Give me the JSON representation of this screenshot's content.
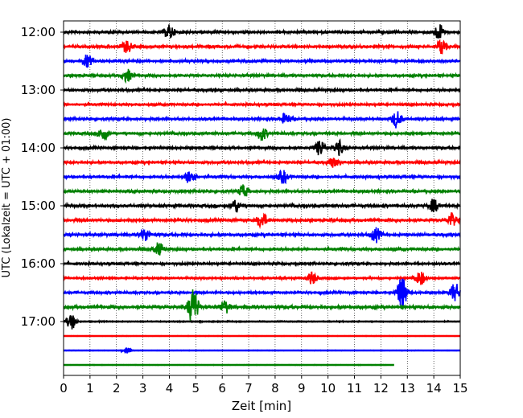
{
  "chart_data": {
    "type": "line",
    "title": "",
    "xlabel": "Zeit  [min]",
    "ylabel": "UTC (Lokalzeit = UTC + 01:00)",
    "xlim": [
      0,
      15
    ],
    "x_ticks": [
      0,
      1,
      2,
      3,
      4,
      5,
      6,
      7,
      8,
      9,
      10,
      11,
      12,
      13,
      14,
      15
    ],
    "x_tick_labels": [
      "0",
      "1",
      "2",
      "3",
      "4",
      "5",
      "6",
      "7",
      "8",
      "9",
      "10",
      "11",
      "12",
      "13",
      "14",
      "15"
    ],
    "y_tick_labels": [
      "12:00",
      "13:00",
      "14:00",
      "15:00",
      "16:00",
      "17:00"
    ],
    "trace_interval_minutes": 15,
    "first_trace_time": "12:00",
    "grid": "vertical dotted",
    "colors": [
      "#000000",
      "#ff0000",
      "#0000ff",
      "#008000"
    ],
    "traces": [
      {
        "time": "12:00",
        "color": "#000000",
        "end_min": 15,
        "amplitude": 0.45,
        "events": [
          {
            "at_min": 4.0,
            "amp": 0.9
          },
          {
            "at_min": 14.2,
            "amp": 1.0
          }
        ]
      },
      {
        "time": "12:15",
        "color": "#ff0000",
        "end_min": 15,
        "amplitude": 0.45,
        "events": [
          {
            "at_min": 2.4,
            "amp": 0.8
          },
          {
            "at_min": 14.3,
            "amp": 1.0
          }
        ]
      },
      {
        "time": "12:30",
        "color": "#0000ff",
        "end_min": 15,
        "amplitude": 0.45,
        "events": [
          {
            "at_min": 0.9,
            "amp": 0.8
          }
        ]
      },
      {
        "time": "12:45",
        "color": "#008000",
        "end_min": 15,
        "amplitude": 0.45,
        "events": [
          {
            "at_min": 2.4,
            "amp": 0.8
          }
        ]
      },
      {
        "time": "13:00",
        "color": "#000000",
        "end_min": 15,
        "amplitude": 0.45,
        "events": []
      },
      {
        "time": "13:15",
        "color": "#ff0000",
        "end_min": 15,
        "amplitude": 0.4,
        "events": []
      },
      {
        "time": "13:30",
        "color": "#0000ff",
        "end_min": 15,
        "amplitude": 0.45,
        "events": [
          {
            "at_min": 8.4,
            "amp": 0.7
          },
          {
            "at_min": 12.6,
            "amp": 1.1
          }
        ]
      },
      {
        "time": "13:45",
        "color": "#008000",
        "end_min": 15,
        "amplitude": 0.45,
        "events": [
          {
            "at_min": 1.5,
            "amp": 0.9
          },
          {
            "at_min": 7.5,
            "amp": 0.9
          }
        ]
      },
      {
        "time": "14:00",
        "color": "#000000",
        "end_min": 15,
        "amplitude": 0.45,
        "events": [
          {
            "at_min": 9.7,
            "amp": 1.0
          },
          {
            "at_min": 10.4,
            "amp": 0.9
          }
        ]
      },
      {
        "time": "14:15",
        "color": "#ff0000",
        "end_min": 15,
        "amplitude": 0.45,
        "events": [
          {
            "at_min": 10.2,
            "amp": 0.6
          }
        ]
      },
      {
        "time": "14:30",
        "color": "#0000ff",
        "end_min": 15,
        "amplitude": 0.45,
        "events": [
          {
            "at_min": 4.8,
            "amp": 1.1
          },
          {
            "at_min": 8.3,
            "amp": 0.8
          }
        ]
      },
      {
        "time": "14:45",
        "color": "#008000",
        "end_min": 15,
        "amplitude": 0.45,
        "events": [
          {
            "at_min": 6.8,
            "amp": 0.8
          }
        ]
      },
      {
        "time": "15:00",
        "color": "#000000",
        "end_min": 15,
        "amplitude": 0.5,
        "events": [
          {
            "at_min": 6.5,
            "amp": 0.8
          },
          {
            "at_min": 14.0,
            "amp": 0.8
          }
        ]
      },
      {
        "time": "15:15",
        "color": "#ff0000",
        "end_min": 15,
        "amplitude": 0.5,
        "events": [
          {
            "at_min": 7.5,
            "amp": 1.0
          },
          {
            "at_min": 14.7,
            "amp": 0.9
          }
        ]
      },
      {
        "time": "15:30",
        "color": "#0000ff",
        "end_min": 15,
        "amplitude": 0.5,
        "events": [
          {
            "at_min": 3.1,
            "amp": 0.8
          },
          {
            "at_min": 11.8,
            "amp": 0.9
          }
        ]
      },
      {
        "time": "15:45",
        "color": "#008000",
        "end_min": 15,
        "amplitude": 0.45,
        "events": [
          {
            "at_min": 3.6,
            "amp": 0.8
          }
        ]
      },
      {
        "time": "16:00",
        "color": "#000000",
        "end_min": 15,
        "amplitude": 0.4,
        "events": []
      },
      {
        "time": "16:15",
        "color": "#ff0000",
        "end_min": 15,
        "amplitude": 0.35,
        "events": [
          {
            "at_min": 9.4,
            "amp": 0.8
          },
          {
            "at_min": 13.5,
            "amp": 0.9
          }
        ]
      },
      {
        "time": "16:30",
        "color": "#0000ff",
        "end_min": 15,
        "amplitude": 0.4,
        "events": [
          {
            "at_min": 12.8,
            "amp": 2.2
          },
          {
            "at_min": 14.8,
            "amp": 1.2
          }
        ]
      },
      {
        "time": "16:45",
        "color": "#008000",
        "end_min": 15,
        "amplitude": 0.55,
        "events": [
          {
            "at_min": 4.9,
            "amp": 2.5
          },
          {
            "at_min": 6.1,
            "amp": 0.8
          }
        ]
      },
      {
        "time": "17:00",
        "color": "#000000",
        "end_min": 15,
        "amplitude": 0.2,
        "events": [
          {
            "at_min": 0.3,
            "amp": 1.0
          }
        ]
      },
      {
        "time": "17:15",
        "color": "#ff0000",
        "end_min": 15,
        "amplitude": 0.1,
        "events": []
      },
      {
        "time": "17:30",
        "color": "#0000ff",
        "end_min": 15,
        "amplitude": 0.1,
        "events": [
          {
            "at_min": 2.4,
            "amp": 0.4
          }
        ]
      },
      {
        "time": "17:45",
        "color": "#008000",
        "end_min": 12.5,
        "amplitude": 0.1,
        "events": []
      }
    ]
  }
}
